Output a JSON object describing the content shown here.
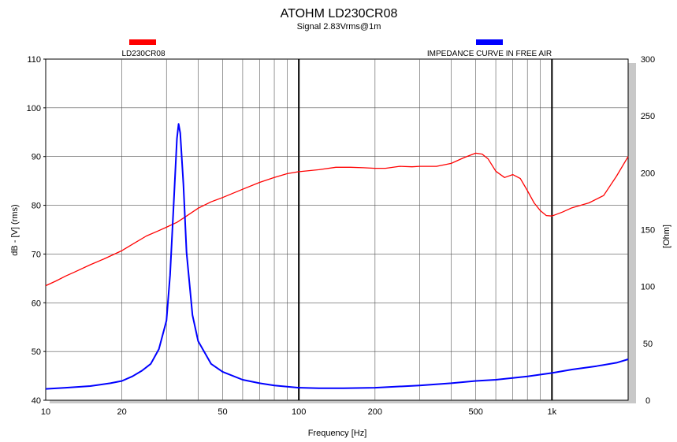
{
  "chart_data": {
    "type": "line",
    "title": "ATOHM LD230CR08",
    "subtitle": "Signal 2.83Vrms@1m",
    "xlabel": "Frequency [Hz]",
    "ylabel_left": "dB - [V] (rms)",
    "ylabel_right": "[Ohm]",
    "x_scale": "log",
    "xlim": [
      10,
      2000
    ],
    "ylim_left": [
      40,
      110
    ],
    "ylim_right": [
      0,
      300
    ],
    "x_ticks": [
      {
        "value": 10,
        "label": "10"
      },
      {
        "value": 20,
        "label": "20"
      },
      {
        "value": 50,
        "label": "50"
      },
      {
        "value": 100,
        "label": "100"
      },
      {
        "value": 200,
        "label": "200"
      },
      {
        "value": 500,
        "label": "500"
      },
      {
        "value": 1000,
        "label": "1k"
      }
    ],
    "y_ticks_left": [
      40,
      50,
      60,
      70,
      80,
      90,
      100,
      110
    ],
    "y_ticks_right": [
      0,
      50,
      100,
      150,
      200,
      250,
      300
    ],
    "grid": true,
    "series": [
      {
        "name": "LD230CR08",
        "axis": "left",
        "color": "#ff0000",
        "x": [
          10,
          11,
          12,
          13,
          15,
          17,
          20,
          22,
          25,
          28,
          30,
          33,
          36,
          40,
          45,
          50,
          60,
          70,
          80,
          90,
          100,
          120,
          140,
          160,
          180,
          200,
          220,
          250,
          280,
          300,
          350,
          400,
          450,
          500,
          530,
          560,
          600,
          650,
          700,
          750,
          800,
          850,
          900,
          950,
          1000,
          1100,
          1200,
          1400,
          1600,
          1800,
          2000
        ],
        "values": [
          63.5,
          64.5,
          65.5,
          66.3,
          67.8,
          69.0,
          70.7,
          72.0,
          73.7,
          74.8,
          75.5,
          76.5,
          77.8,
          79.4,
          80.7,
          81.6,
          83.3,
          84.7,
          85.7,
          86.5,
          86.9,
          87.3,
          87.8,
          87.8,
          87.7,
          87.6,
          87.6,
          88.0,
          87.9,
          88.0,
          88.0,
          88.6,
          89.8,
          90.7,
          90.5,
          89.5,
          87.0,
          85.7,
          86.3,
          85.5,
          83.0,
          80.5,
          78.9,
          77.9,
          77.8,
          78.6,
          79.5,
          80.5,
          82.0,
          86.0,
          90.0
        ]
      },
      {
        "name": "IMPEDANCE CURVE IN FREE AIR",
        "axis": "right",
        "color": "#0000ff",
        "x": [
          10,
          12,
          15,
          18,
          20,
          22,
          24,
          26,
          28,
          30,
          31,
          32,
          33,
          33.5,
          34,
          35,
          36,
          38,
          40,
          45,
          50,
          60,
          70,
          80,
          100,
          120,
          150,
          200,
          300,
          400,
          500,
          600,
          800,
          1000,
          1200,
          1500,
          1800,
          2000
        ],
        "values": [
          10,
          11,
          12.5,
          15,
          17,
          21,
          26,
          32,
          45,
          70,
          110,
          170,
          230,
          243,
          235,
          190,
          130,
          75,
          52,
          32,
          25,
          18,
          15,
          13,
          11,
          10.5,
          10.5,
          11,
          13,
          15,
          17,
          18,
          21,
          24,
          27,
          30,
          33,
          36
        ]
      }
    ],
    "legend": [
      {
        "label": "LD230CR08",
        "color": "#ff0000"
      },
      {
        "label": "IMPEDANCE CURVE IN FREE AIR",
        "color": "#0000ff"
      }
    ]
  }
}
